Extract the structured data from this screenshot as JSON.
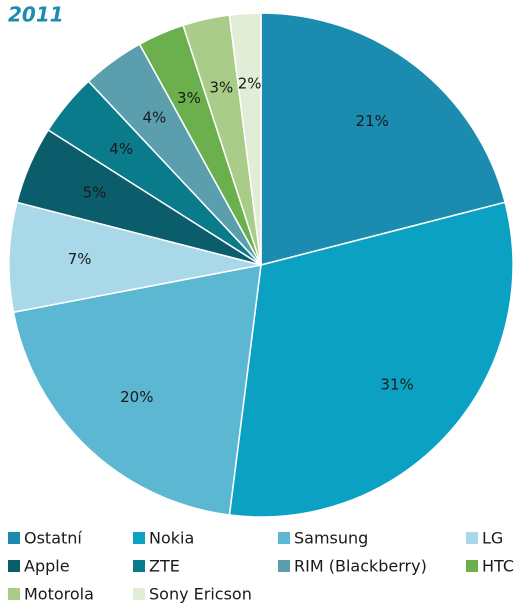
{
  "chart_data": {
    "type": "pie",
    "title": "2011",
    "categories": [
      "Ostatní",
      "Nokia",
      "Samsung",
      "LG",
      "Apple",
      "ZTE",
      "RIM (Blackberry)",
      "HTC",
      "Motorola",
      "Sony Ericson"
    ],
    "values": [
      21,
      31,
      20,
      7,
      5,
      4,
      4,
      3,
      3,
      2
    ],
    "value_labels": [
      "21%",
      "31%",
      "20%",
      "7%",
      "5%",
      "4%",
      "4%",
      "3%",
      "3%",
      "2%"
    ],
    "colors": [
      "#1b8cb0",
      "#0ba1c2",
      "#5cb7d3",
      "#a9d8e8",
      "#0b5d6c",
      "#0a7b8b",
      "#5b9fae",
      "#6bb04d",
      "#a9cc89",
      "#e1edd6"
    ],
    "legend": "bottom"
  }
}
